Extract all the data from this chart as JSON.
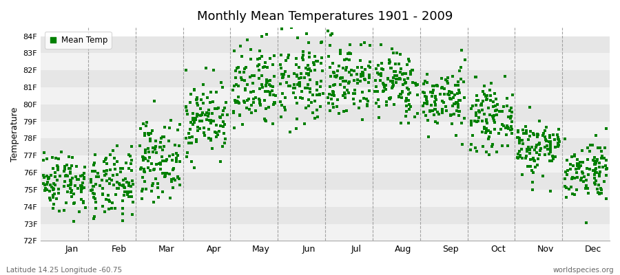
{
  "title": "Monthly Mean Temperatures 1901 - 2009",
  "ylabel": "Temperature",
  "xlabel_bottom_left": "Latitude 14.25 Longitude -60.75",
  "xlabel_bottom_right": "worldspecies.org",
  "legend_label": "Mean Temp",
  "marker_color": "#008000",
  "background_color": "#ffffff",
  "plot_bg_color": "#ffffff",
  "band_color_light": "#f2f2f2",
  "band_color_dark": "#e6e6e6",
  "grid_color": "#ffffff",
  "months": [
    "Jan",
    "Feb",
    "Mar",
    "Apr",
    "May",
    "Jun",
    "Jul",
    "Aug",
    "Sep",
    "Oct",
    "Nov",
    "Dec"
  ],
  "ylim": [
    72,
    84.5
  ],
  "yticks": [
    72,
    73,
    74,
    75,
    76,
    77,
    78,
    79,
    80,
    81,
    82,
    83,
    84
  ],
  "ytick_labels": [
    "72F",
    "73F",
    "74F",
    "75F",
    "76F",
    "77F",
    "78F",
    "79F",
    "80F",
    "81F",
    "82F",
    "83F",
    "84F"
  ],
  "num_years": 109,
  "seed": 42,
  "monthly_means": [
    75.5,
    75.2,
    76.8,
    79.2,
    80.8,
    81.3,
    81.5,
    81.2,
    80.3,
    79.2,
    77.5,
    76.2
  ],
  "monthly_stds": [
    0.9,
    1.0,
    1.1,
    1.1,
    1.3,
    1.3,
    1.2,
    1.0,
    0.9,
    0.9,
    0.85,
    0.9
  ]
}
